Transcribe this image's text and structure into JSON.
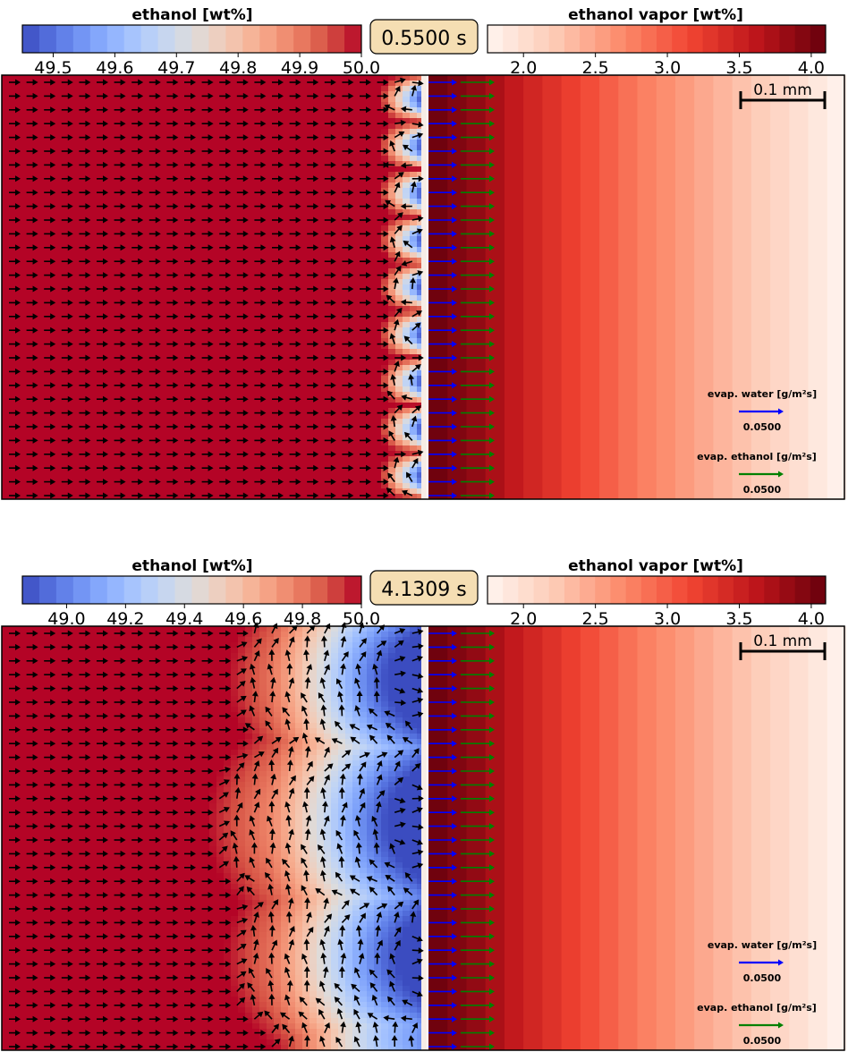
{
  "panels": [
    {
      "time_label": "0.5500 s",
      "liquid_colorbar": {
        "title": "ethanol [wt%]",
        "min": 49.45,
        "max": 50.0,
        "ticks": [
          "49.5",
          "49.6",
          "49.7",
          "49.8",
          "49.9",
          "50.0"
        ],
        "tick_values": [
          49.5,
          49.6,
          49.7,
          49.8,
          49.9,
          50.0
        ]
      },
      "vapor_colorbar": {
        "title": "ethanol vapor [wt%]",
        "min": 1.75,
        "max": 4.1,
        "ticks": [
          "2.0",
          "2.5",
          "3.0",
          "3.5",
          "4.0"
        ],
        "tick_values": [
          2.0,
          2.5,
          3.0,
          3.5,
          4.0
        ]
      },
      "scale_bar": "0.1 mm",
      "legend": {
        "water_label": "evap. water [g/m²s]",
        "water_value": "0.0500",
        "ethanol_label": "evap. ethanol [g/m²s]",
        "ethanol_value": "0.0500"
      },
      "pattern": "small"
    },
    {
      "time_label": "4.1309 s",
      "liquid_colorbar": {
        "title": "ethanol [wt%]",
        "min": 48.85,
        "max": 50.0,
        "ticks": [
          "49.0",
          "49.2",
          "49.4",
          "49.6",
          "49.8",
          "50.0"
        ],
        "tick_values": [
          49.0,
          49.2,
          49.4,
          49.6,
          49.8,
          50.0
        ]
      },
      "vapor_colorbar": {
        "title": "ethanol vapor [wt%]",
        "min": 1.75,
        "max": 4.1,
        "ticks": [
          "2.0",
          "2.5",
          "3.0",
          "3.5",
          "4.0"
        ],
        "tick_values": [
          2.0,
          2.5,
          3.0,
          3.5,
          4.0
        ]
      },
      "scale_bar": "0.1 mm",
      "legend": {
        "water_label": "evap. water [g/m²s]",
        "water_value": "0.0500",
        "ethanol_label": "evap. ethanol [g/m²s]",
        "ethanol_value": "0.0500"
      },
      "pattern": "large"
    }
  ],
  "colors": {
    "liquid_colormap": [
      "#3b4cc0",
      "#5977e3",
      "#7b9ff9",
      "#9ebeff",
      "#c0d4f5",
      "#dddcdc",
      "#f2cbb7",
      "#f7ac8e",
      "#ee8468",
      "#d65244",
      "#b40426"
    ],
    "vapor_colormap": [
      "#fff5f0",
      "#fdcab5",
      "#fc8a6a",
      "#f14432",
      "#bc141a",
      "#67000d"
    ],
    "water_arrow": "#0000ff",
    "ethanol_arrow": "#008000",
    "flow_arrow": "#000000",
    "time_box_fill": "#f5deb3"
  },
  "chart_data": {
    "type": "heatmap",
    "description_x_axis": "",
    "series_vapor_profile": {
      "x_fraction_of_gas_region": [
        0.0,
        0.1,
        0.2,
        0.3,
        0.4,
        0.5,
        0.6,
        0.7,
        0.8,
        0.9,
        1.0
      ],
      "ethanol_vapor_wt_percent": [
        4.05,
        3.85,
        3.55,
        3.3,
        3.05,
        2.8,
        2.6,
        2.4,
        2.2,
        2.0,
        1.8
      ]
    }
  }
}
